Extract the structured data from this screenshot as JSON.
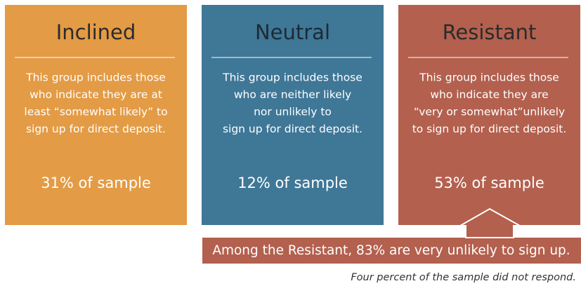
{
  "cards": [
    {
      "title": "Inclined",
      "lines": [
        "This group includes those",
        "who indicate they are at",
        "least “somewhat likely” to",
        "sign up for direct deposit."
      ],
      "sample": "31% of sample"
    },
    {
      "title": "Neutral",
      "lines": [
        "This group includes those",
        "who are neither likely",
        "nor unlikely to",
        "sign up for direct deposit."
      ],
      "sample": "12% of sample"
    },
    {
      "title": "Resistant",
      "lines": [
        "This group includes those",
        "who indicate they are",
        "“very or somewhat”unlikely",
        "to sign up for direct deposit."
      ],
      "sample": "53% of sample"
    }
  ],
  "callout": "Among the Resistant, 83% are very unlikely to sign up.",
  "footnote": "Four percent of the sample did not respond."
}
